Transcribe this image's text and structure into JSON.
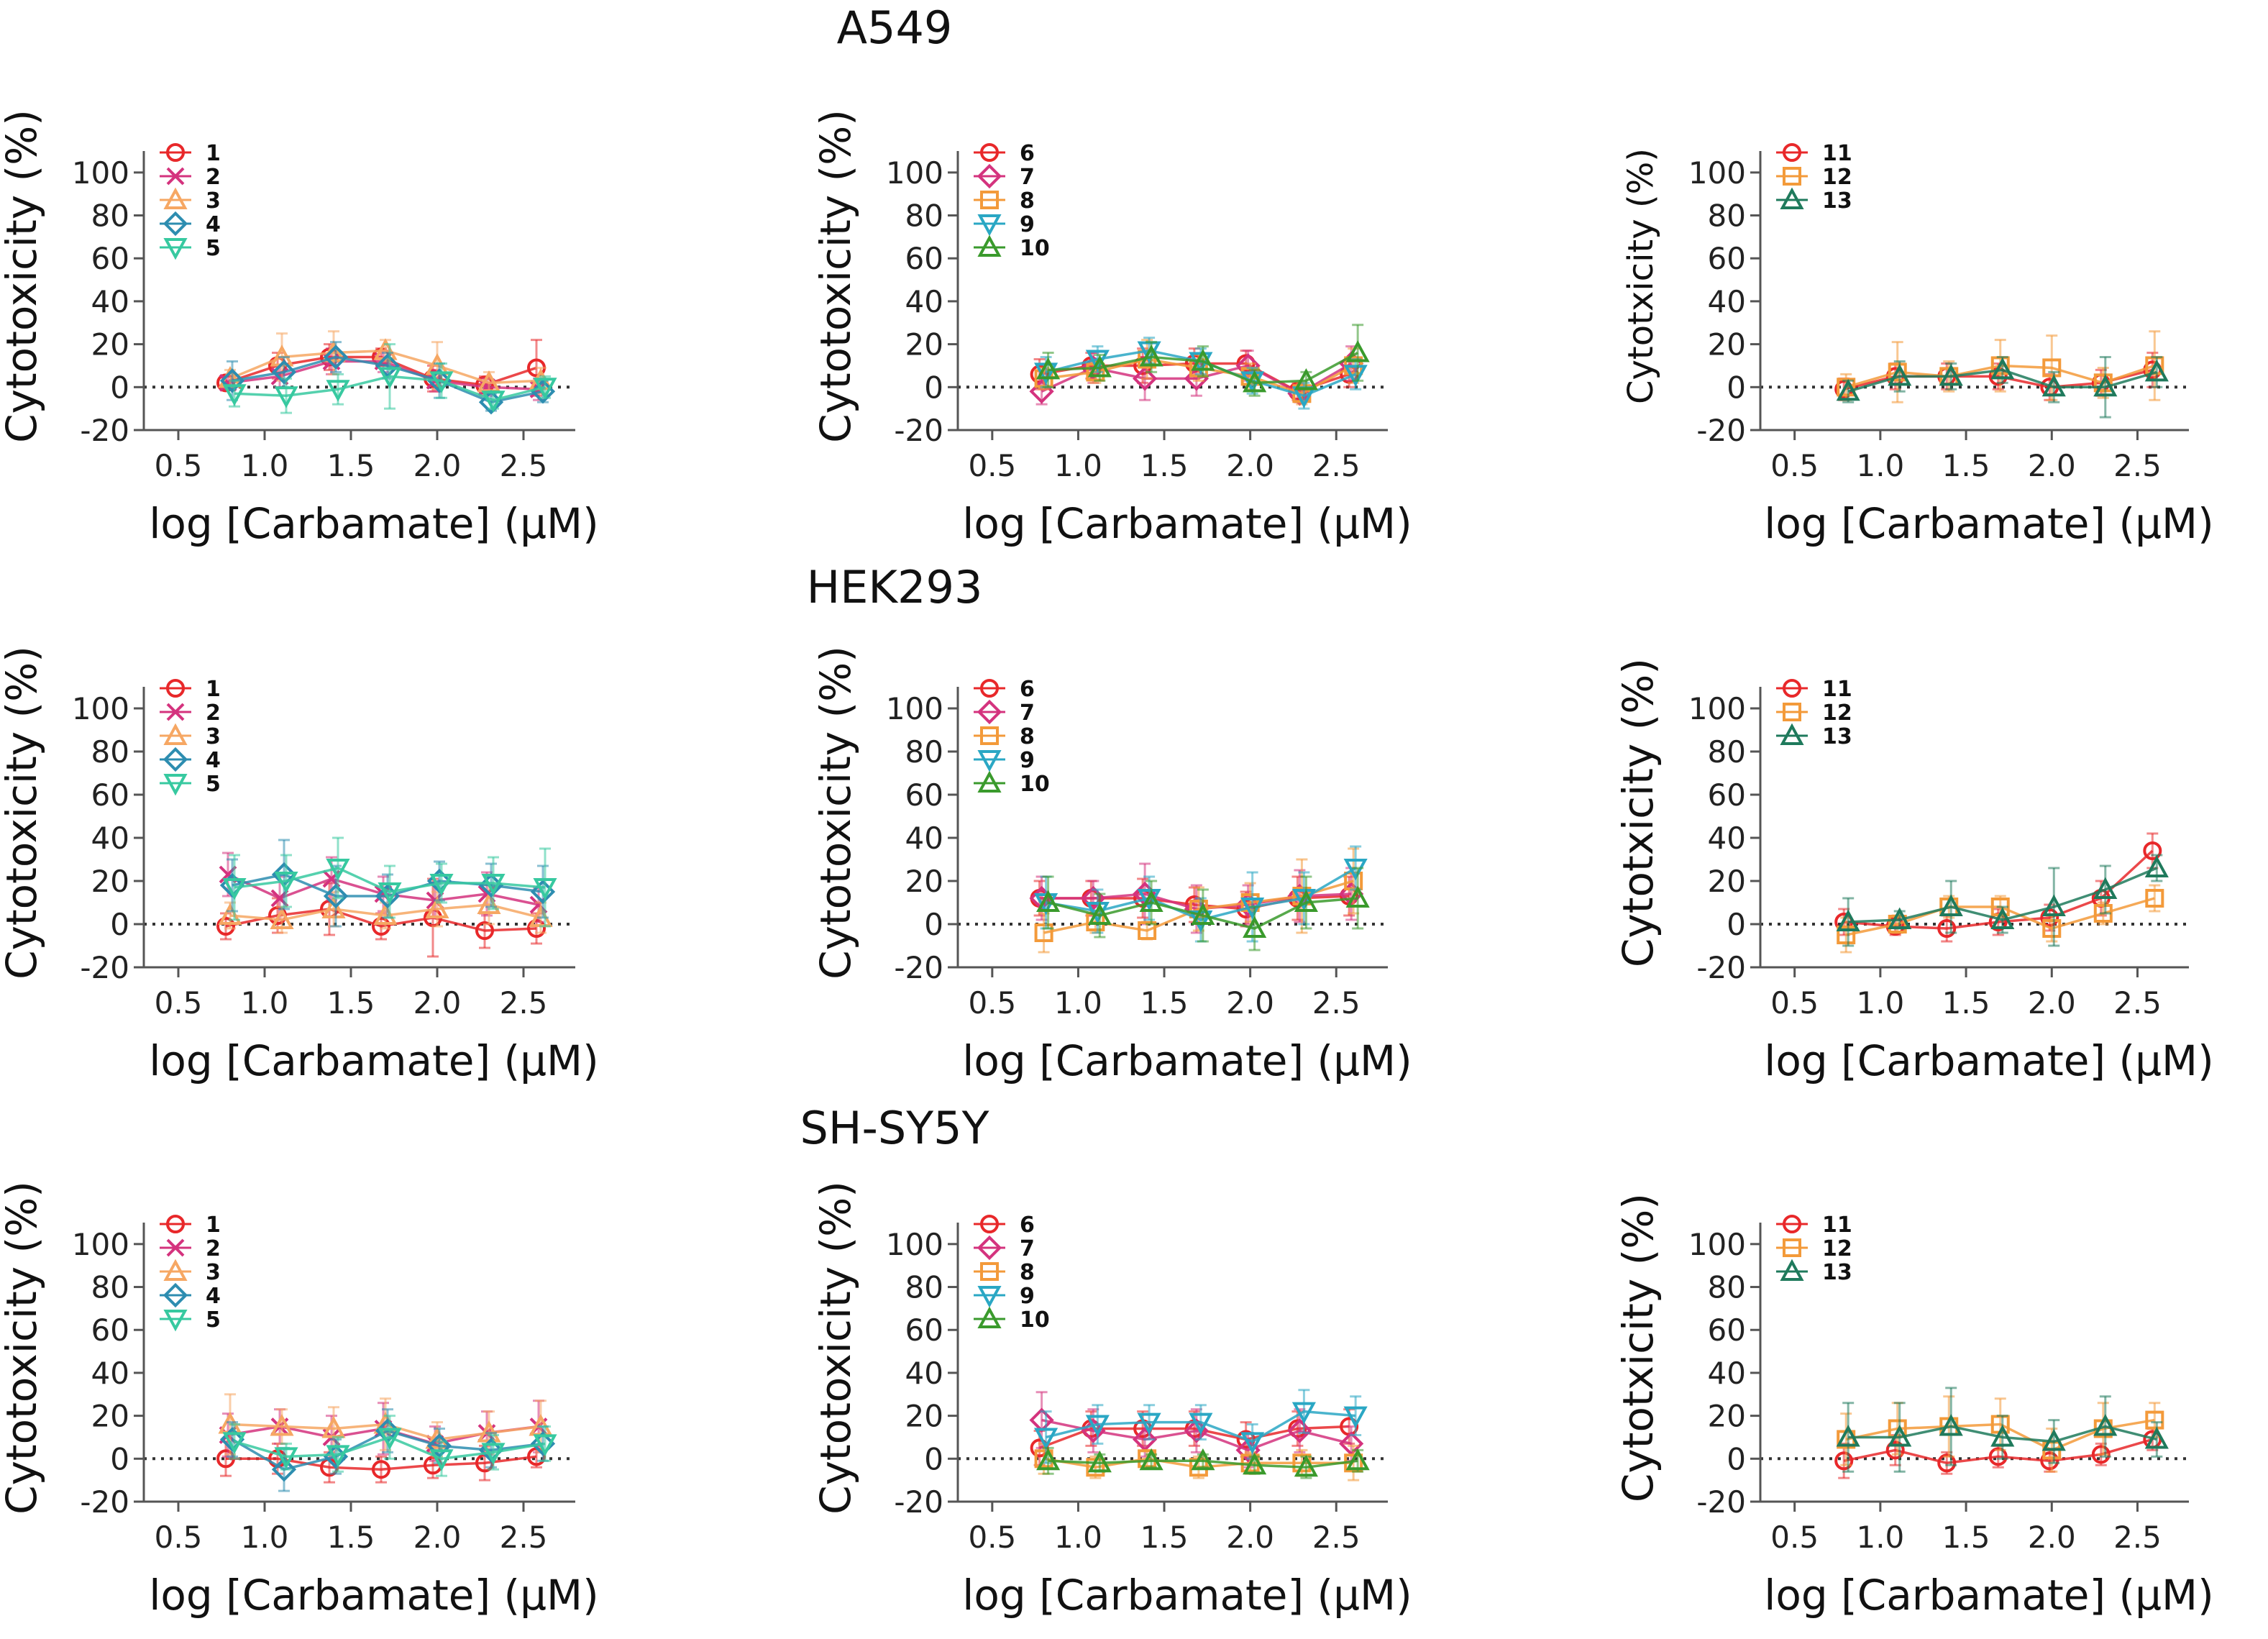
{
  "rows": [
    {
      "title": "A549"
    },
    {
      "title": "HEK293"
    },
    {
      "title": "SH-SY5Y"
    }
  ],
  "series_styles": {
    "1": {
      "color": "#e8282a",
      "marker": "circle"
    },
    "2": {
      "color": "#d4337e",
      "marker": "x"
    },
    "3": {
      "color": "#f6a763",
      "marker": "triangle-up"
    },
    "4": {
      "color": "#2d8db0",
      "marker": "diamond"
    },
    "5": {
      "color": "#37c9a0",
      "marker": "triangle-down"
    },
    "6": {
      "color": "#e8282a",
      "marker": "circle"
    },
    "7": {
      "color": "#d4337e",
      "marker": "diamond"
    },
    "8": {
      "color": "#f39a3a",
      "marker": "square"
    },
    "9": {
      "color": "#2aa7c4",
      "marker": "triangle-down"
    },
    "10": {
      "color": "#3a9a2c",
      "marker": "triangle-up"
    },
    "11": {
      "color": "#e8282a",
      "marker": "circle"
    },
    "12": {
      "color": "#f39a3a",
      "marker": "square"
    },
    "13": {
      "color": "#1f7a5c",
      "marker": "triangle-up"
    }
  },
  "chart_data": [
    {
      "type": "line",
      "row": "A549",
      "xlabel": "log [Carbamate] (μM)",
      "ylabel": "Cytotoxicity (%)",
      "xlim": [
        0.3,
        2.8
      ],
      "ylim": [
        -20,
        110
      ],
      "xticks": [
        "0.5",
        "1.0",
        "1.5",
        "2.0",
        "2.5"
      ],
      "yticks": [
        "-20",
        "0",
        "20",
        "40",
        "60",
        "80",
        "100"
      ],
      "x": [
        0.8,
        1.1,
        1.4,
        1.7,
        2.0,
        2.3,
        2.6
      ],
      "series": [
        {
          "name": "1",
          "values": [
            2,
            10,
            14,
            14,
            4,
            1,
            9
          ],
          "errors": [
            3,
            6,
            6,
            4,
            6,
            4,
            13
          ]
        },
        {
          "name": "2",
          "values": [
            2,
            5,
            12,
            12,
            3,
            0,
            -1
          ],
          "errors": [
            3,
            5,
            6,
            5,
            5,
            4,
            5
          ]
        },
        {
          "name": "3",
          "values": [
            4,
            14,
            16,
            17,
            10,
            2,
            3
          ],
          "errors": [
            4,
            11,
            10,
            5,
            11,
            5,
            6
          ]
        },
        {
          "name": "4",
          "values": [
            3,
            7,
            14,
            10,
            3,
            -7,
            -2
          ],
          "errors": [
            9,
            7,
            7,
            6,
            8,
            4,
            5
          ]
        },
        {
          "name": "5",
          "values": [
            -3,
            -4,
            -1,
            5,
            3,
            -6,
            0
          ],
          "errors": [
            6,
            8,
            7,
            15,
            8,
            4,
            5
          ]
        }
      ]
    },
    {
      "type": "line",
      "row": "A549",
      "xlabel": "log [Carbamate] (μM)",
      "ylabel": "Cytotoxicity (%)",
      "xlim": [
        0.3,
        2.8
      ],
      "ylim": [
        -20,
        110
      ],
      "xticks": [
        "0.5",
        "1.0",
        "1.5",
        "2.0",
        "2.5"
      ],
      "yticks": [
        "-20",
        "0",
        "20",
        "40",
        "60",
        "80",
        "100"
      ],
      "x": [
        0.8,
        1.1,
        1.4,
        1.7,
        2.0,
        2.3,
        2.6
      ],
      "series": [
        {
          "name": "6",
          "values": [
            6,
            10,
            10,
            11,
            11,
            -2,
            6
          ],
          "errors": [
            7,
            6,
            8,
            7,
            6,
            4,
            6
          ]
        },
        {
          "name": "7",
          "values": [
            -2,
            9,
            4,
            4,
            10,
            -3,
            11
          ],
          "errors": [
            6,
            7,
            10,
            8,
            7,
            4,
            8
          ]
        },
        {
          "name": "8",
          "values": [
            4,
            7,
            13,
            9,
            5,
            -3,
            10
          ],
          "errors": [
            5,
            5,
            9,
            6,
            6,
            5,
            8
          ]
        },
        {
          "name": "9",
          "values": [
            7,
            13,
            17,
            12,
            3,
            -4,
            6
          ],
          "errors": [
            7,
            6,
            6,
            6,
            6,
            6,
            7
          ]
        },
        {
          "name": "10",
          "values": [
            8,
            9,
            14,
            12,
            2,
            3,
            16
          ],
          "errors": [
            8,
            6,
            7,
            7,
            6,
            4,
            13
          ]
        }
      ]
    },
    {
      "type": "line",
      "row": "A549",
      "xlabel": "log [Carbamate] (μM)",
      "ylabel": "Cytotxicity (%)",
      "xlim": [
        0.3,
        2.8
      ],
      "ylim": [
        -20,
        110
      ],
      "xticks": [
        "0.5",
        "1.0",
        "1.5",
        "2.0",
        "2.5"
      ],
      "yticks": [
        "-20",
        "0",
        "20",
        "40",
        "60",
        "80",
        "100"
      ],
      "x": [
        0.8,
        1.1,
        1.4,
        1.7,
        2.0,
        2.3,
        2.6
      ],
      "series": [
        {
          "name": "11",
          "values": [
            -1,
            5,
            5,
            5,
            0,
            2,
            8
          ],
          "errors": [
            5,
            6,
            6,
            6,
            6,
            6,
            8
          ]
        },
        {
          "name": "12",
          "values": [
            0,
            7,
            5,
            10,
            9,
            2,
            10
          ],
          "errors": [
            6,
            14,
            7,
            12,
            15,
            7,
            16
          ]
        },
        {
          "name": "13",
          "values": [
            -2,
            5,
            5,
            8,
            0,
            0,
            7
          ],
          "errors": [
            5,
            7,
            6,
            6,
            7,
            14,
            7
          ]
        }
      ]
    },
    {
      "type": "line",
      "row": "HEK293",
      "xlabel": "log [Carbamate] (μM)",
      "ylabel": "Cytotoxicity (%)",
      "xlim": [
        0.3,
        2.8
      ],
      "ylim": [
        -20,
        110
      ],
      "xticks": [
        "0.5",
        "1.0",
        "1.5",
        "2.0",
        "2.5"
      ],
      "yticks": [
        "-20",
        "0",
        "20",
        "40",
        "60",
        "80",
        "100"
      ],
      "x": [
        0.8,
        1.1,
        1.4,
        1.7,
        2.0,
        2.3,
        2.6
      ],
      "series": [
        {
          "name": "1",
          "values": [
            -1,
            4,
            7,
            -1,
            3,
            -3,
            -2
          ],
          "errors": [
            6,
            8,
            12,
            6,
            18,
            8,
            7
          ]
        },
        {
          "name": "2",
          "values": [
            23,
            12,
            21,
            14,
            11,
            14,
            9
          ],
          "errors": [
            10,
            10,
            10,
            8,
            8,
            10,
            8
          ]
        },
        {
          "name": "3",
          "values": [
            4,
            2,
            7,
            4,
            7,
            9,
            3
          ],
          "errors": [
            6,
            6,
            8,
            6,
            8,
            9,
            7
          ]
        },
        {
          "name": "4",
          "values": [
            18,
            23,
            13,
            13,
            20,
            18,
            15
          ],
          "errors": [
            12,
            16,
            14,
            10,
            9,
            10,
            12
          ]
        },
        {
          "name": "5",
          "values": [
            17,
            20,
            26,
            15,
            19,
            19,
            17
          ],
          "errors": [
            15,
            12,
            14,
            12,
            9,
            12,
            18
          ]
        }
      ]
    },
    {
      "type": "line",
      "row": "HEK293",
      "xlabel": "log [Carbamate] (μM)",
      "ylabel": "Cytotoxicity (%)",
      "xlim": [
        0.3,
        2.8
      ],
      "ylim": [
        -20,
        110
      ],
      "xticks": [
        "0.5",
        "1.0",
        "1.5",
        "2.0",
        "2.5"
      ],
      "yticks": [
        "-20",
        "0",
        "20",
        "40",
        "60",
        "80",
        "100"
      ],
      "x": [
        0.8,
        1.1,
        1.4,
        1.7,
        2.0,
        2.3,
        2.6
      ],
      "series": [
        {
          "name": "6",
          "values": [
            12,
            12,
            12,
            9,
            7,
            12,
            13
          ],
          "errors": [
            8,
            8,
            9,
            8,
            8,
            10,
            9
          ]
        },
        {
          "name": "7",
          "values": [
            12,
            12,
            14,
            7,
            9,
            13,
            14
          ],
          "errors": [
            10,
            8,
            14,
            11,
            9,
            12,
            12
          ]
        },
        {
          "name": "8",
          "values": [
            -4,
            1,
            -3,
            7,
            10,
            13,
            20
          ],
          "errors": [
            9,
            5,
            4,
            10,
            9,
            17,
            15
          ]
        },
        {
          "name": "9",
          "values": [
            10,
            6,
            12,
            2,
            8,
            12,
            26
          ],
          "errors": [
            12,
            10,
            10,
            10,
            16,
            12,
            10
          ]
        },
        {
          "name": "10",
          "values": [
            10,
            4,
            10,
            4,
            -2,
            10,
            12
          ],
          "errors": [
            12,
            10,
            10,
            12,
            10,
            12,
            14
          ]
        }
      ]
    },
    {
      "type": "line",
      "row": "HEK293",
      "xlabel": "log [Carbamate] (μM)",
      "ylabel": "Cytotxicity (%)",
      "xlim": [
        0.3,
        2.8
      ],
      "ylim": [
        -20,
        110
      ],
      "xticks": [
        "0.5",
        "1.0",
        "1.5",
        "2.0",
        "2.5"
      ],
      "yticks": [
        "-20",
        "0",
        "20",
        "40",
        "60",
        "80",
        "100"
      ],
      "x": [
        0.8,
        1.1,
        1.4,
        1.7,
        2.0,
        2.3,
        2.6
      ],
      "series": [
        {
          "name": "11",
          "values": [
            1,
            -1,
            -2,
            1,
            3,
            12,
            34
          ],
          "errors": [
            6,
            4,
            6,
            6,
            6,
            8,
            8
          ]
        },
        {
          "name": "12",
          "values": [
            -5,
            0,
            8,
            8,
            -2,
            5,
            12
          ],
          "errors": [
            8,
            4,
            5,
            5,
            6,
            5,
            6
          ]
        },
        {
          "name": "13",
          "values": [
            1,
            2,
            8,
            2,
            8,
            16,
            26
          ],
          "errors": [
            11,
            4,
            12,
            6,
            18,
            11,
            6
          ]
        }
      ]
    },
    {
      "type": "line",
      "row": "SH-SY5Y",
      "xlabel": "log [Carbamate] (μM)",
      "ylabel": "Cytotoxicity (%)",
      "xlim": [
        0.3,
        2.8
      ],
      "ylim": [
        -20,
        110
      ],
      "xticks": [
        "0.5",
        "1.0",
        "1.5",
        "2.0",
        "2.5"
      ],
      "yticks": [
        "-20",
        "0",
        "20",
        "40",
        "60",
        "80",
        "100"
      ],
      "x": [
        0.8,
        1.1,
        1.4,
        1.7,
        2.0,
        2.3,
        2.6
      ],
      "series": [
        {
          "name": "1",
          "values": [
            0,
            0,
            -4,
            -5,
            -3,
            -2,
            1
          ],
          "errors": [
            8,
            7,
            7,
            6,
            6,
            8,
            5
          ]
        },
        {
          "name": "2",
          "values": [
            11,
            15,
            10,
            14,
            7,
            12,
            15
          ],
          "errors": [
            10,
            8,
            10,
            12,
            8,
            10,
            12
          ]
        },
        {
          "name": "3",
          "values": [
            16,
            15,
            14,
            16,
            9,
            12,
            15
          ],
          "errors": [
            14,
            8,
            10,
            12,
            8,
            10,
            12
          ]
        },
        {
          "name": "4",
          "values": [
            9,
            -5,
            1,
            13,
            6,
            4,
            7
          ],
          "errors": [
            8,
            10,
            8,
            10,
            8,
            8,
            8
          ]
        },
        {
          "name": "5",
          "values": [
            8,
            1,
            2,
            10,
            0,
            3,
            7
          ],
          "errors": [
            8,
            6,
            8,
            10,
            8,
            8,
            8
          ]
        }
      ]
    },
    {
      "type": "line",
      "row": "SH-SY5Y",
      "xlabel": "log [Carbamate] (μM)",
      "ylabel": "Cytotoxicity (%)",
      "xlim": [
        0.3,
        2.8
      ],
      "ylim": [
        -20,
        110
      ],
      "xticks": [
        "0.5",
        "1.0",
        "1.5",
        "2.0",
        "2.5"
      ],
      "yticks": [
        "-20",
        "0",
        "20",
        "40",
        "60",
        "80",
        "100"
      ],
      "x": [
        0.8,
        1.1,
        1.4,
        1.7,
        2.0,
        2.3,
        2.6
      ],
      "series": [
        {
          "name": "6",
          "values": [
            5,
            14,
            14,
            14,
            9,
            14,
            15
          ],
          "errors": [
            8,
            8,
            8,
            8,
            8,
            8,
            8
          ]
        },
        {
          "name": "7",
          "values": [
            18,
            13,
            9,
            13,
            4,
            13,
            7
          ],
          "errors": [
            13,
            10,
            8,
            10,
            8,
            10,
            8
          ]
        },
        {
          "name": "8",
          "values": [
            0,
            -4,
            0,
            -4,
            -2,
            -2,
            -2
          ],
          "errors": [
            7,
            5,
            4,
            5,
            5,
            6,
            8
          ]
        },
        {
          "name": "9",
          "values": [
            10,
            16,
            17,
            17,
            8,
            22,
            20
          ],
          "errors": [
            12,
            9,
            8,
            8,
            8,
            10,
            9
          ]
        },
        {
          "name": "10",
          "values": [
            -1,
            -2,
            -1,
            -1,
            -3,
            -4,
            -1
          ],
          "errors": [
            6,
            4,
            3,
            3,
            4,
            5,
            5
          ]
        }
      ]
    },
    {
      "type": "line",
      "row": "SH-SY5Y",
      "xlabel": "log [Carbamate] (μM)",
      "ylabel": "Cytotxicity (%)",
      "xlim": [
        0.3,
        2.8
      ],
      "ylim": [
        -20,
        110
      ],
      "xticks": [
        "0.5",
        "1.0",
        "1.5",
        "2.0",
        "2.5"
      ],
      "yticks": [
        "-20",
        "0",
        "20",
        "40",
        "60",
        "80",
        "100"
      ],
      "x": [
        0.8,
        1.1,
        1.4,
        1.7,
        2.0,
        2.3,
        2.6
      ],
      "series": [
        {
          "name": "11",
          "values": [
            -1,
            4,
            -2,
            1,
            -1,
            2,
            9
          ],
          "errors": [
            8,
            7,
            5,
            5,
            5,
            5,
            5
          ]
        },
        {
          "name": "12",
          "values": [
            9,
            14,
            15,
            16,
            4,
            14,
            18
          ],
          "errors": [
            12,
            12,
            14,
            12,
            10,
            12,
            8
          ]
        },
        {
          "name": "13",
          "values": [
            10,
            10,
            15,
            10,
            8,
            15,
            9
          ],
          "errors": [
            16,
            16,
            18,
            10,
            10,
            14,
            8
          ]
        }
      ]
    }
  ]
}
